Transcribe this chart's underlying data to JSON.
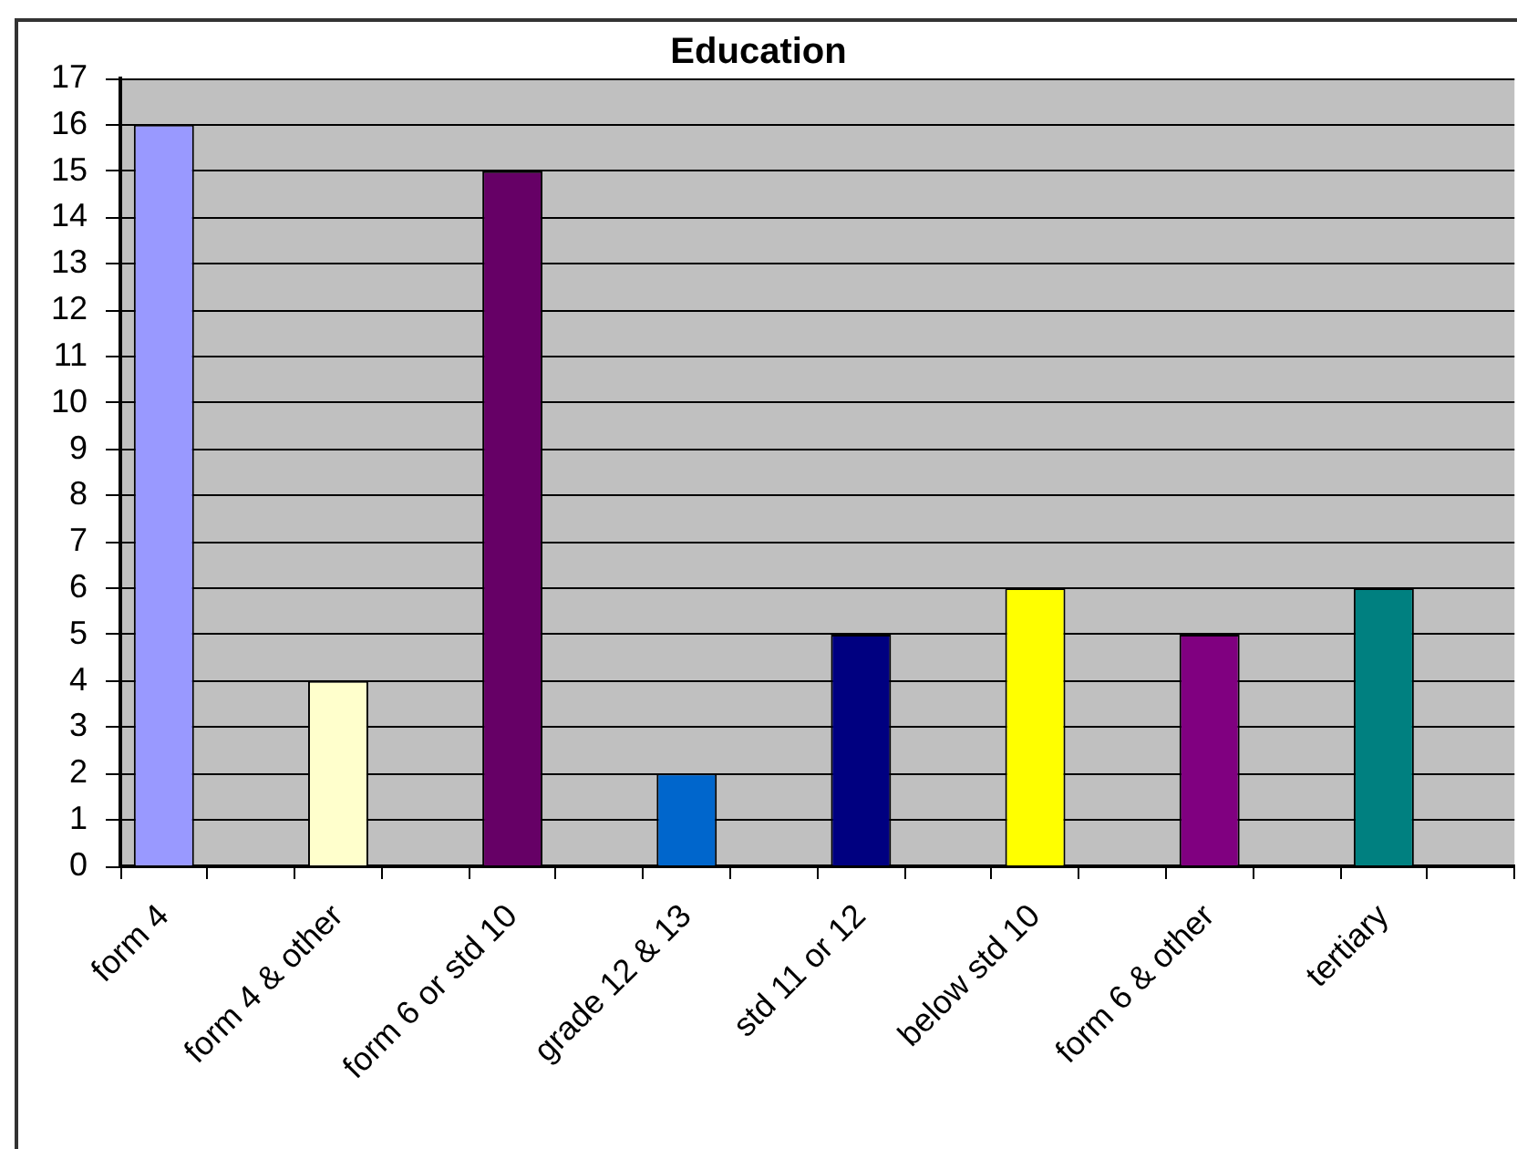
{
  "chart_data": {
    "type": "bar",
    "title": "Education",
    "categories": [
      "form 4",
      null,
      "form 4 & other",
      null,
      "form 6 or std 10",
      null,
      "grade 12 & 13",
      null,
      "std 11 or 12",
      null,
      "below std 10",
      null,
      "form 6 & other",
      null,
      "tertiary",
      null
    ],
    "values": [
      16,
      null,
      4,
      null,
      15,
      null,
      2,
      null,
      5,
      null,
      6,
      null,
      5,
      null,
      6,
      null
    ],
    "colors": [
      "#9999ff",
      null,
      "#ffffcc",
      null,
      "#660066",
      null,
      "#0066cc",
      null,
      "#000080",
      null,
      "#ffff00",
      null,
      "#800080",
      null,
      "#008080",
      null
    ],
    "ylim": [
      0,
      17
    ],
    "yticks": [
      0,
      1,
      2,
      3,
      4,
      5,
      6,
      7,
      8,
      9,
      10,
      11,
      12,
      13,
      14,
      15,
      16,
      17
    ],
    "grid": "y"
  }
}
